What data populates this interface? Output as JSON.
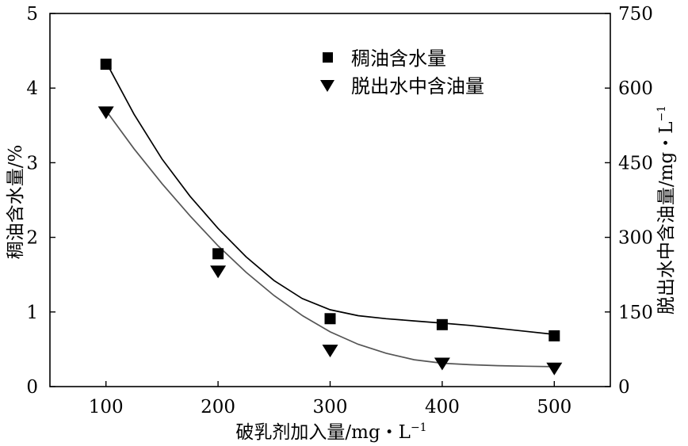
{
  "chart_data": {
    "type": "scatter",
    "title": "",
    "xlabel": "破乳剂加入量/mg・L",
    "xlabel_sup": "−1",
    "ylabel_left": "稠油含水量/%",
    "ylabel_right": "脱出水中含油量/mg・L",
    "ylabel_right_sup": "−1",
    "xlim": [
      50,
      550
    ],
    "xticks": [
      100,
      200,
      300,
      400,
      500
    ],
    "ylim_left": [
      0,
      5
    ],
    "yticks_left": [
      0,
      1,
      2,
      3,
      4,
      5
    ],
    "ylim_right": [
      0,
      750
    ],
    "yticks_right": [
      0,
      150,
      300,
      450,
      600,
      750
    ],
    "legend_position": "top-right",
    "series": [
      {
        "name": "稠油含水量",
        "axis": "left",
        "marker": "square",
        "x": [
          100,
          200,
          300,
          400,
          500
        ],
        "y": [
          4.32,
          1.78,
          0.91,
          0.83,
          0.68
        ],
        "fit": [
          [
            100,
            4.35
          ],
          [
            125,
            3.65
          ],
          [
            150,
            3.05
          ],
          [
            175,
            2.55
          ],
          [
            200,
            2.12
          ],
          [
            225,
            1.74
          ],
          [
            250,
            1.42
          ],
          [
            275,
            1.18
          ],
          [
            300,
            1.03
          ],
          [
            325,
            0.95
          ],
          [
            350,
            0.91
          ],
          [
            375,
            0.88
          ],
          [
            400,
            0.85
          ],
          [
            425,
            0.82
          ],
          [
            450,
            0.78
          ],
          [
            475,
            0.74
          ],
          [
            500,
            0.7
          ]
        ]
      },
      {
        "name": "脱出水中含油量",
        "axis": "right",
        "marker": "triangle-down",
        "x": [
          100,
          200,
          300,
          400,
          500
        ],
        "y": [
          552,
          232,
          73,
          47,
          37
        ],
        "fit": [
          [
            100,
            555
          ],
          [
            125,
            478
          ],
          [
            150,
            408
          ],
          [
            175,
            343
          ],
          [
            200,
            283
          ],
          [
            225,
            230
          ],
          [
            250,
            183
          ],
          [
            275,
            143
          ],
          [
            300,
            110
          ],
          [
            325,
            85
          ],
          [
            350,
            67
          ],
          [
            375,
            54
          ],
          [
            400,
            47
          ],
          [
            425,
            44
          ],
          [
            450,
            42
          ],
          [
            475,
            41
          ],
          [
            500,
            40
          ]
        ]
      }
    ]
  },
  "colors": {
    "axis": "#000000",
    "series_1_fit": "#000000",
    "series_2_fit": "#555555",
    "markers": "#000000"
  }
}
